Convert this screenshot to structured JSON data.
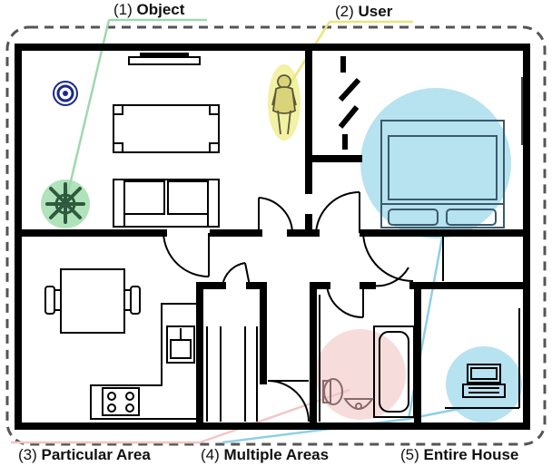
{
  "labels": {
    "object": {
      "num": "(1)",
      "text": "Object"
    },
    "user": {
      "num": "(2)",
      "text": "User"
    },
    "area": {
      "num": "(3)",
      "text": "Particular Area"
    },
    "multiple": {
      "num": "(4)",
      "text": "Multiple Areas"
    },
    "house": {
      "num": "(5)",
      "text": "Entire House"
    }
  },
  "colors": {
    "wall": "#000000",
    "object_highlight": "#a8e0b4",
    "user_highlight": "#f1f09a",
    "area_highlight": "#f6d6d6",
    "multiple_highlight": "#9fd8ea",
    "object_line": "#9ed9ac",
    "user_line": "#e8e67a",
    "area_line": "#f2c6c6",
    "multiple_line": "#8fcfe3",
    "house_border": "#555555"
  }
}
